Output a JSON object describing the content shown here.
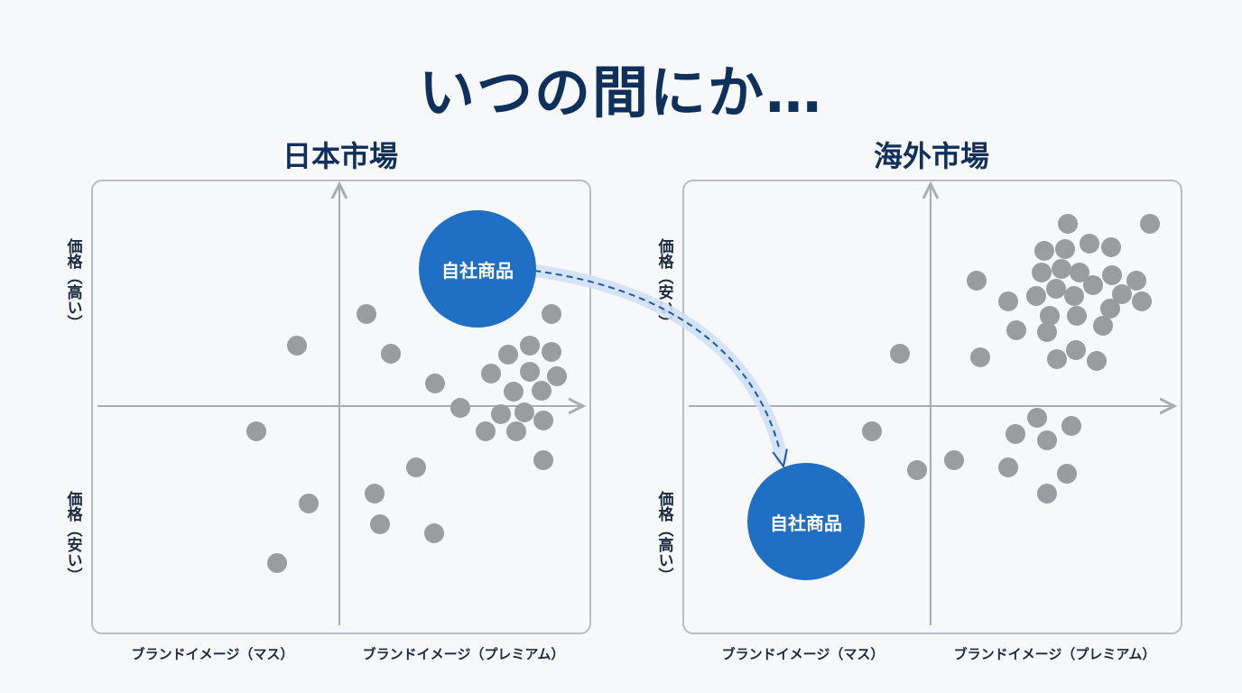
{
  "title": "いつの間にか…",
  "panels": [
    {
      "id": "left",
      "title": "日本市場",
      "y_top_label": "価格（高い）",
      "y_bottom_label": "価格（安い）",
      "x_left_label": "ブランドイメージ（マス）",
      "x_right_label": "ブランドイメージ（プレミアム）",
      "own_product_label": "自社商品"
    },
    {
      "id": "right",
      "title": "海外市場",
      "y_top_label": "価格（安い）",
      "y_bottom_label": "価格（高い）",
      "x_left_label": "ブランドイメージ（マス）",
      "x_right_label": "ブランドイメージ（プレミアム）",
      "own_product_label": "自社商品"
    }
  ],
  "colors": {
    "title": "#10305c",
    "own_product": "#1f6fc5",
    "competitor": "#9a9ca0",
    "axis": "#a9adb2",
    "arrow": "#1f5aa8",
    "arrow_glow": "#cfe0f5"
  }
}
